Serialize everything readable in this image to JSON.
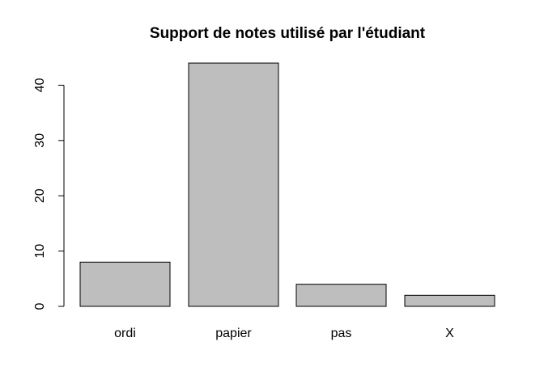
{
  "chart_data": {
    "type": "bar",
    "title": "Support de notes utilisé par l'étudiant",
    "xlabel": "",
    "ylabel": "",
    "categories": [
      "ordi",
      "papier",
      "pas",
      "X"
    ],
    "values": [
      8,
      44,
      4,
      2
    ],
    "yticks": [
      0,
      10,
      20,
      30,
      40
    ],
    "ytick_labels": [
      "0",
      "10",
      "20",
      "30",
      "40"
    ],
    "ylim": [
      0,
      44
    ],
    "bar_color": "#bebebe",
    "bar_edge_color": "#000000",
    "grid": false,
    "legend": false
  }
}
